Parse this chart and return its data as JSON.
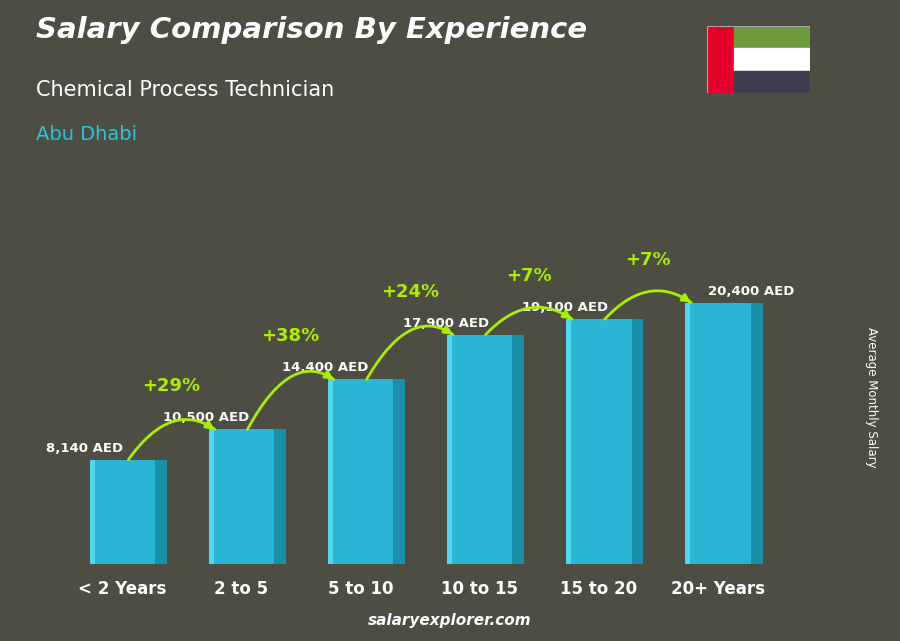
{
  "categories": [
    "< 2 Years",
    "2 to 5",
    "5 to 10",
    "10 to 15",
    "15 to 20",
    "20+ Years"
  ],
  "values": [
    8140,
    10500,
    14400,
    17900,
    19100,
    20400
  ],
  "value_labels": [
    "8,140 AED",
    "10,500 AED",
    "14,400 AED",
    "17,900 AED",
    "19,100 AED",
    "20,400 AED"
  ],
  "pct_labels": [
    null,
    "+29%",
    "+38%",
    "+24%",
    "+7%",
    "+7%"
  ],
  "bar_color_main": "#29b6d4",
  "bar_color_light": "#4dd8f0",
  "bar_color_dark": "#1a8fa8",
  "pct_color": "#aaee00",
  "title_line1": "Salary Comparison By Experience",
  "title_line2": "Chemical Process Technician",
  "title_line3": "Abu Dhabi",
  "ylabel": "Average Monthly Salary",
  "source": "salaryexplorer.com",
  "bg_color": "#5a5a52",
  "ylim": [
    0,
    26000
  ],
  "flag_colors": [
    "#E4002B",
    "#6D9B3A",
    "#FFFFFF",
    "#3D3D4F"
  ]
}
